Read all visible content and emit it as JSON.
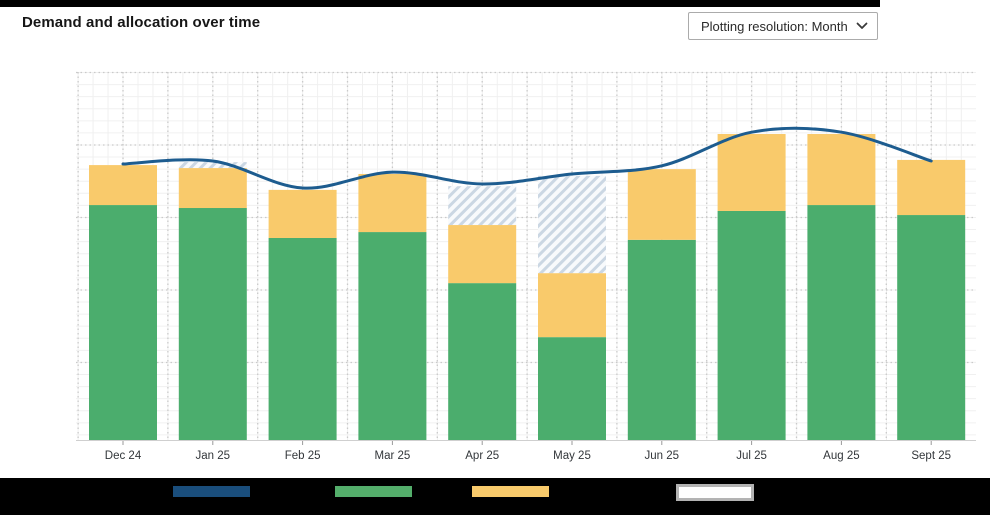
{
  "header": {
    "title": "Demand and allocation over time",
    "resolution_dropdown": {
      "label": "Plotting resolution: Month",
      "icon": "chevron-down"
    }
  },
  "chart_data": {
    "type": "combo (stacked bar + line)",
    "title": "Demand and allocation over time",
    "categories": [
      "Dec 24",
      "Jan 25",
      "Feb 25",
      "Mar 25",
      "Apr 25",
      "May 25",
      "Jun 25",
      "Jul 25",
      "Aug 25",
      "Sept 25"
    ],
    "series": [
      {
        "name": "bar-green",
        "type": "bar",
        "stack": "total",
        "color": "#4BAD6D",
        "values": [
          63.5,
          62.7,
          54.6,
          56.2,
          42.4,
          27.8,
          54.1,
          61.9,
          63.5,
          60.8
        ]
      },
      {
        "name": "bar-yellow",
        "type": "bar",
        "stack": "total",
        "color": "#F9CA6B",
        "values": [
          10.8,
          10.8,
          13.0,
          15.7,
          15.7,
          17.3,
          19.1,
          20.8,
          19.2,
          14.9
        ]
      },
      {
        "name": "bar-hatched",
        "type": "bar",
        "stack": "total",
        "pattern": "diagonal-stripes",
        "stripe_color": "#CBD7E3",
        "stripe_bg": "#F8FAFC",
        "values": [
          0,
          1.6,
          0,
          0,
          10.5,
          26.3,
          0,
          0,
          0,
          0
        ]
      },
      {
        "name": "line-dark-blue",
        "type": "line",
        "color": "#1D5C8F",
        "values": [
          74.6,
          75.4,
          68.1,
          72.4,
          69.2,
          71.9,
          74.1,
          83.2,
          83.2,
          75.4
        ]
      }
    ],
    "ylim": [
      0,
      100
    ],
    "y_axis": "no tick labels shown (values estimated in relative units)",
    "grid": "light minor grid with dotted major gridlines",
    "legend_position": "bottom",
    "legend_labels_visible": false
  },
  "legend": {
    "swatches": [
      {
        "name": "line-series-swatch",
        "color": "#1A4E7C"
      },
      {
        "name": "green-series-swatch",
        "color": "#54AE6B"
      },
      {
        "name": "yellow-series-swatch",
        "color": "#F8CA6B"
      },
      {
        "name": "hatched-series-swatch",
        "color": "#FFFFFF",
        "border_color": "#B3B3B3"
      }
    ]
  },
  "colors": {
    "line": "#1D5C8F",
    "bar_green": "#4BAD6D",
    "bar_yellow": "#F9CA6B",
    "hatch_stripe": "#CBD7E3",
    "hatch_bg": "#F8FAFC",
    "axis": "#CFCFCF",
    "tick": "#9A9A9A",
    "label_text": "#32363A",
    "grid_minor": "#F0F0F0",
    "grid_major": "#CACACA"
  }
}
